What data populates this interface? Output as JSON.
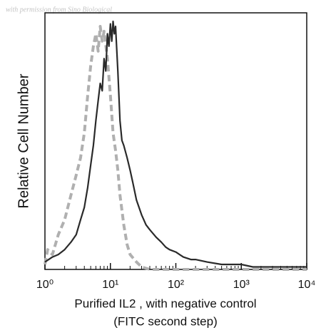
{
  "chart_data": {
    "type": "line",
    "annotation": "with permission from Sino Biological",
    "xlabel": [
      "Purified IL2 , with negative control",
      "(FITC second step)"
    ],
    "ylabel": "Relative Cell Number",
    "xscale": "log",
    "xlim": [
      1,
      10000
    ],
    "xticks": [
      {
        "value": 1,
        "label": "10⁰"
      },
      {
        "value": 10,
        "label": "10¹"
      },
      {
        "value": 100,
        "label": "10²"
      },
      {
        "value": 1000,
        "label": "10³"
      },
      {
        "value": 10000,
        "label": "10⁴"
      }
    ],
    "xminor_ticks": [
      2,
      3,
      4,
      5,
      6,
      7,
      8,
      9,
      20,
      30,
      40,
      50,
      60,
      70,
      80,
      90,
      200,
      300,
      400,
      500,
      600,
      700,
      800,
      900,
      2000,
      3000,
      4000,
      5000,
      6000,
      7000,
      8000,
      9000
    ],
    "ylim": [
      0,
      100
    ],
    "series": [
      {
        "color": "#b0b0b0",
        "dashed": true,
        "x": [
          1,
          1.1,
          1.3,
          1.6,
          2,
          2.5,
          3,
          3.5,
          4,
          4.5,
          5,
          5.5,
          6,
          6.5,
          7,
          7.5,
          8,
          9,
          10,
          11,
          12,
          13,
          14,
          16,
          18,
          20,
          25,
          30,
          40,
          100,
          10000
        ],
        "values": [
          2,
          8,
          6,
          14,
          20,
          30,
          38,
          45,
          55,
          70,
          82,
          90,
          95,
          88,
          98,
          92,
          96,
          85,
          70,
          55,
          48,
          40,
          30,
          18,
          10,
          6,
          3,
          1,
          0,
          0,
          0
        ]
      },
      {
        "color": "#2a2a2a",
        "dashed": false,
        "x": [
          1,
          1.3,
          1.6,
          2,
          2.5,
          3,
          3.5,
          4,
          4.5,
          5,
          5.5,
          6,
          6.5,
          7,
          7.5,
          8,
          8.5,
          9,
          9.5,
          10,
          10.5,
          11,
          11.5,
          12,
          13,
          14,
          15,
          16,
          18,
          20,
          22,
          25,
          30,
          35,
          40,
          50,
          60,
          70,
          80,
          100,
          130,
          170,
          200,
          300,
          500,
          700,
          1000,
          1500,
          3000,
          10000
        ],
        "values": [
          3,
          5,
          6,
          8,
          11,
          14,
          20,
          25,
          33,
          42,
          50,
          60,
          68,
          75,
          72,
          85,
          80,
          95,
          90,
          99,
          92,
          100,
          95,
          98,
          80,
          60,
          52,
          50,
          45,
          40,
          35,
          28,
          22,
          18,
          16,
          13,
          11,
          9,
          8,
          7,
          5,
          4,
          4,
          3,
          2,
          2,
          2,
          1,
          1,
          1
        ]
      }
    ]
  }
}
